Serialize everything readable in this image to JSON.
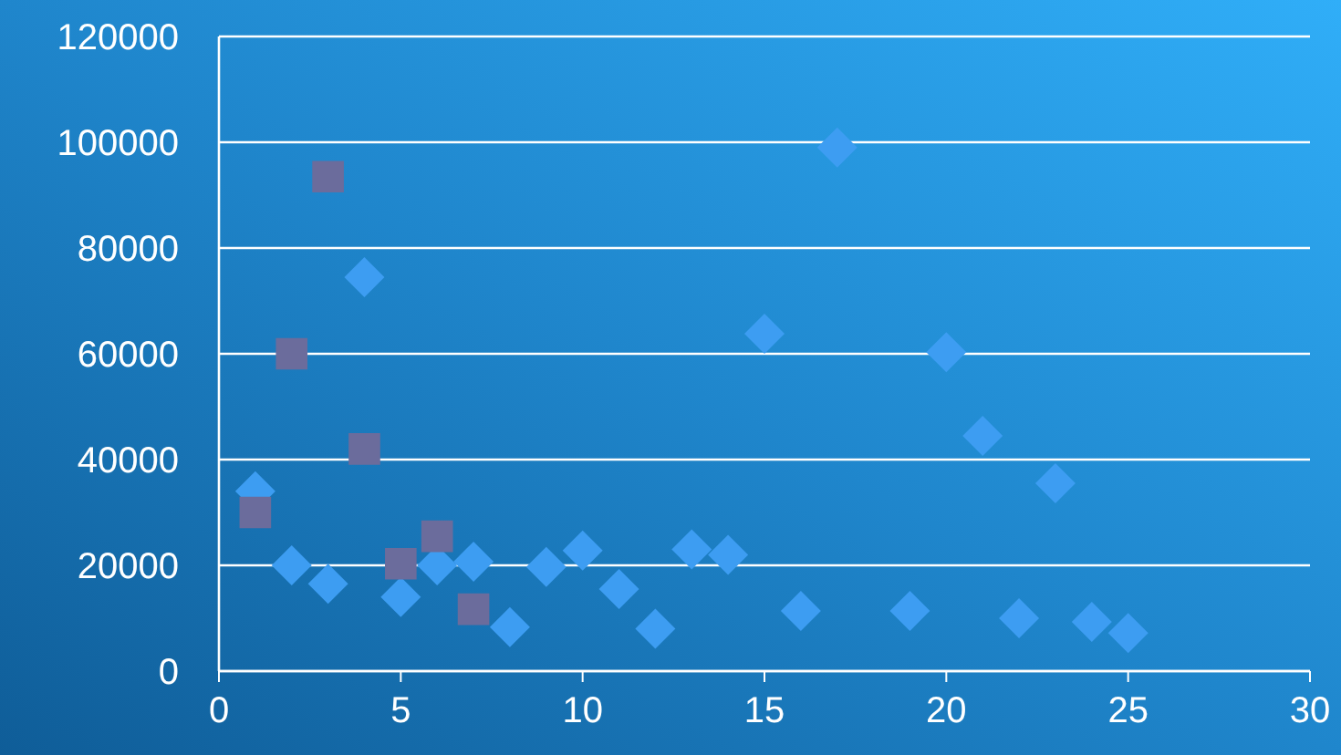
{
  "chart_data": {
    "type": "scatter",
    "xlim": [
      0,
      30
    ],
    "xticks": [
      0,
      5,
      10,
      15,
      20,
      25,
      30
    ],
    "ylim": [
      0,
      120000
    ],
    "yticks": [
      0,
      20000,
      40000,
      60000,
      80000,
      100000,
      120000
    ],
    "grid": "y",
    "series": [
      {
        "color": "#3d9df2",
        "marker": "diamond",
        "x": [
          1,
          2,
          3,
          4,
          5,
          6,
          7,
          8,
          9,
          10,
          11,
          12,
          13,
          14,
          15,
          16,
          17,
          19,
          20,
          21,
          22,
          23,
          24,
          25
        ],
        "values": [
          34000,
          20000,
          16500,
          74500,
          14000,
          20000,
          20700,
          8300,
          19700,
          22800,
          15500,
          8000,
          23000,
          22000,
          63800,
          11400,
          99000,
          11400,
          60300,
          44500,
          10000,
          35500,
          9300,
          7200
        ]
      },
      {
        "color": "#6b6c9c",
        "marker": "square",
        "x": [
          1,
          2,
          3,
          4,
          5,
          6,
          7
        ],
        "values": [
          30000,
          60000,
          93500,
          42000,
          20300,
          25500,
          11700
        ]
      }
    ]
  }
}
